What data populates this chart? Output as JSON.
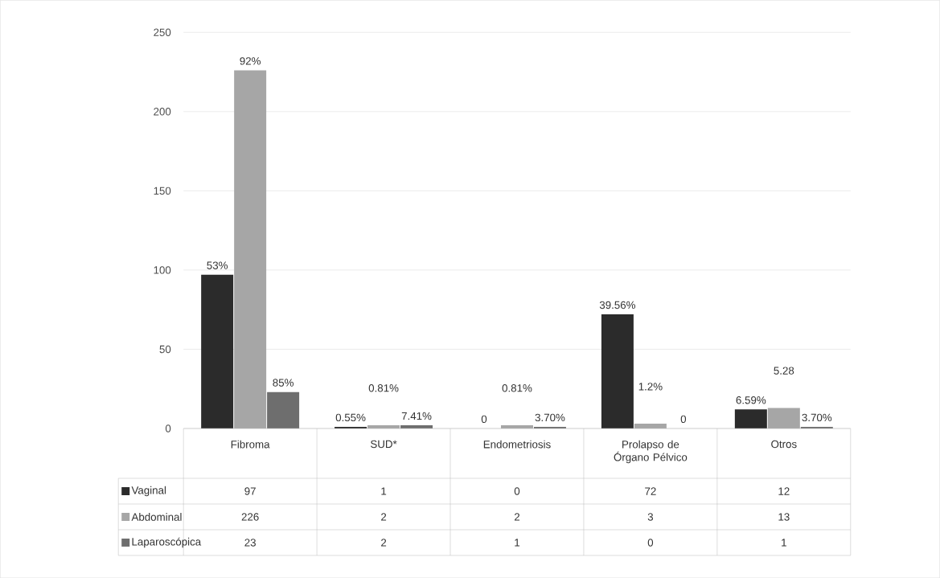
{
  "chart_data": {
    "type": "bar",
    "categories": [
      "Fibroma",
      "SUD*",
      "Endometriosis",
      "Prolapso de Órgano Pélvico",
      "Otros"
    ],
    "series": [
      {
        "name": "Vaginal",
        "color": "#2b2b2b",
        "values": [
          97,
          1,
          0,
          72,
          12
        ]
      },
      {
        "name": "Abdominal",
        "color": "#a6a6a6",
        "values": [
          226,
          2,
          2,
          3,
          13
        ]
      },
      {
        "name": "Laparoscópica",
        "color": "#6e6e6e",
        "values": [
          23,
          2,
          1,
          0,
          1
        ]
      }
    ],
    "annotations": [
      "53%",
      "92%",
      "85%",
      "0.55%",
      "0.81%",
      "7.41%",
      "0",
      "0.81%",
      "3.70%",
      "39.56%",
      "1.2%",
      "0",
      "6.59%",
      "5.28",
      "3.70%"
    ],
    "ylim": [
      0,
      250
    ],
    "yticks": [
      0,
      50,
      100,
      150,
      200,
      250
    ],
    "grid": "y",
    "legend": "bottom",
    "data_labels": true
  }
}
